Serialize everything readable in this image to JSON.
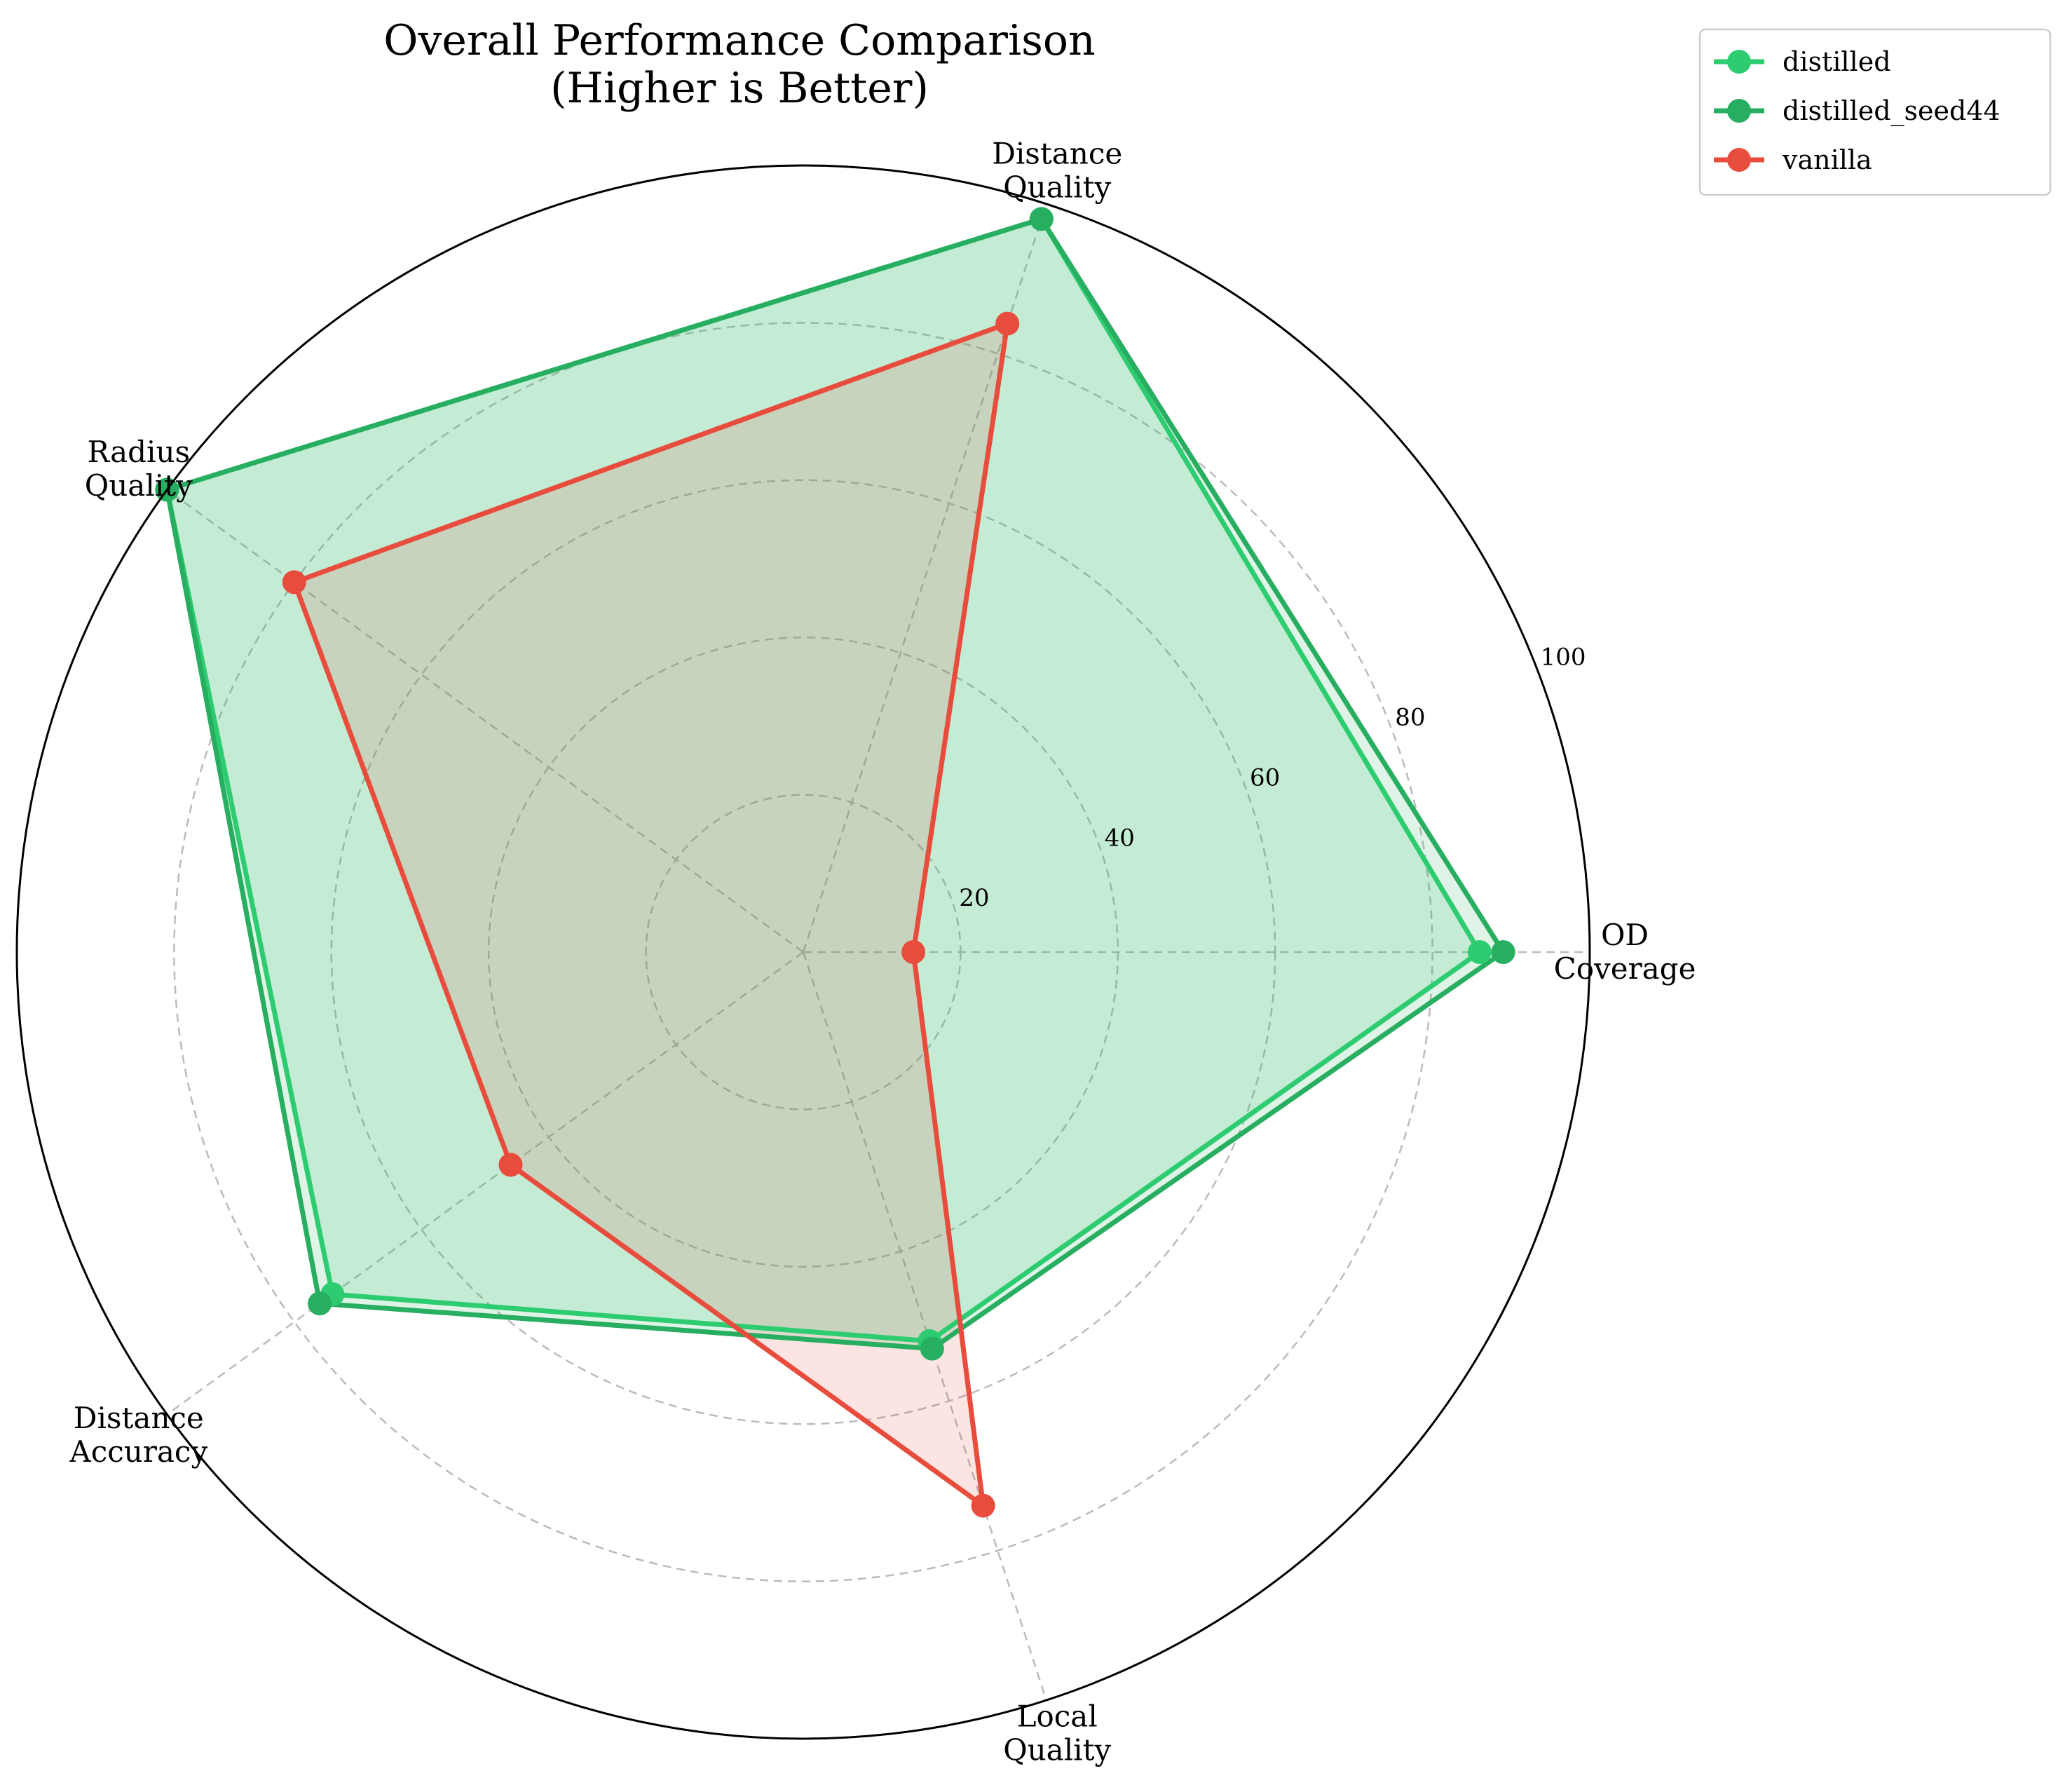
{
  "chart_data": {
    "type": "radar",
    "title": "Overall Performance Comparison\n(Higher is Better)",
    "axes": [
      "OD\nCoverage",
      "Distance\nQuality",
      "Radius\nQuality",
      "Distance\nAccuracy",
      "Local\nQuality"
    ],
    "rlim": [
      0,
      100
    ],
    "r_ticks": [
      "20",
      "40",
      "60",
      "80",
      "100"
    ],
    "grid": true,
    "legend_position": "top-right",
    "series": [
      {
        "name": "distilled",
        "values": [
          86,
          98,
          100,
          74,
          52
        ],
        "color": "#2ecc71"
      },
      {
        "name": "distilled_seed44",
        "values": [
          89,
          98,
          100,
          76,
          53
        ],
        "color": "#27ae60"
      },
      {
        "name": "vanilla",
        "values": [
          14,
          84,
          80,
          46,
          74
        ],
        "color": "#e74c3c"
      }
    ]
  }
}
